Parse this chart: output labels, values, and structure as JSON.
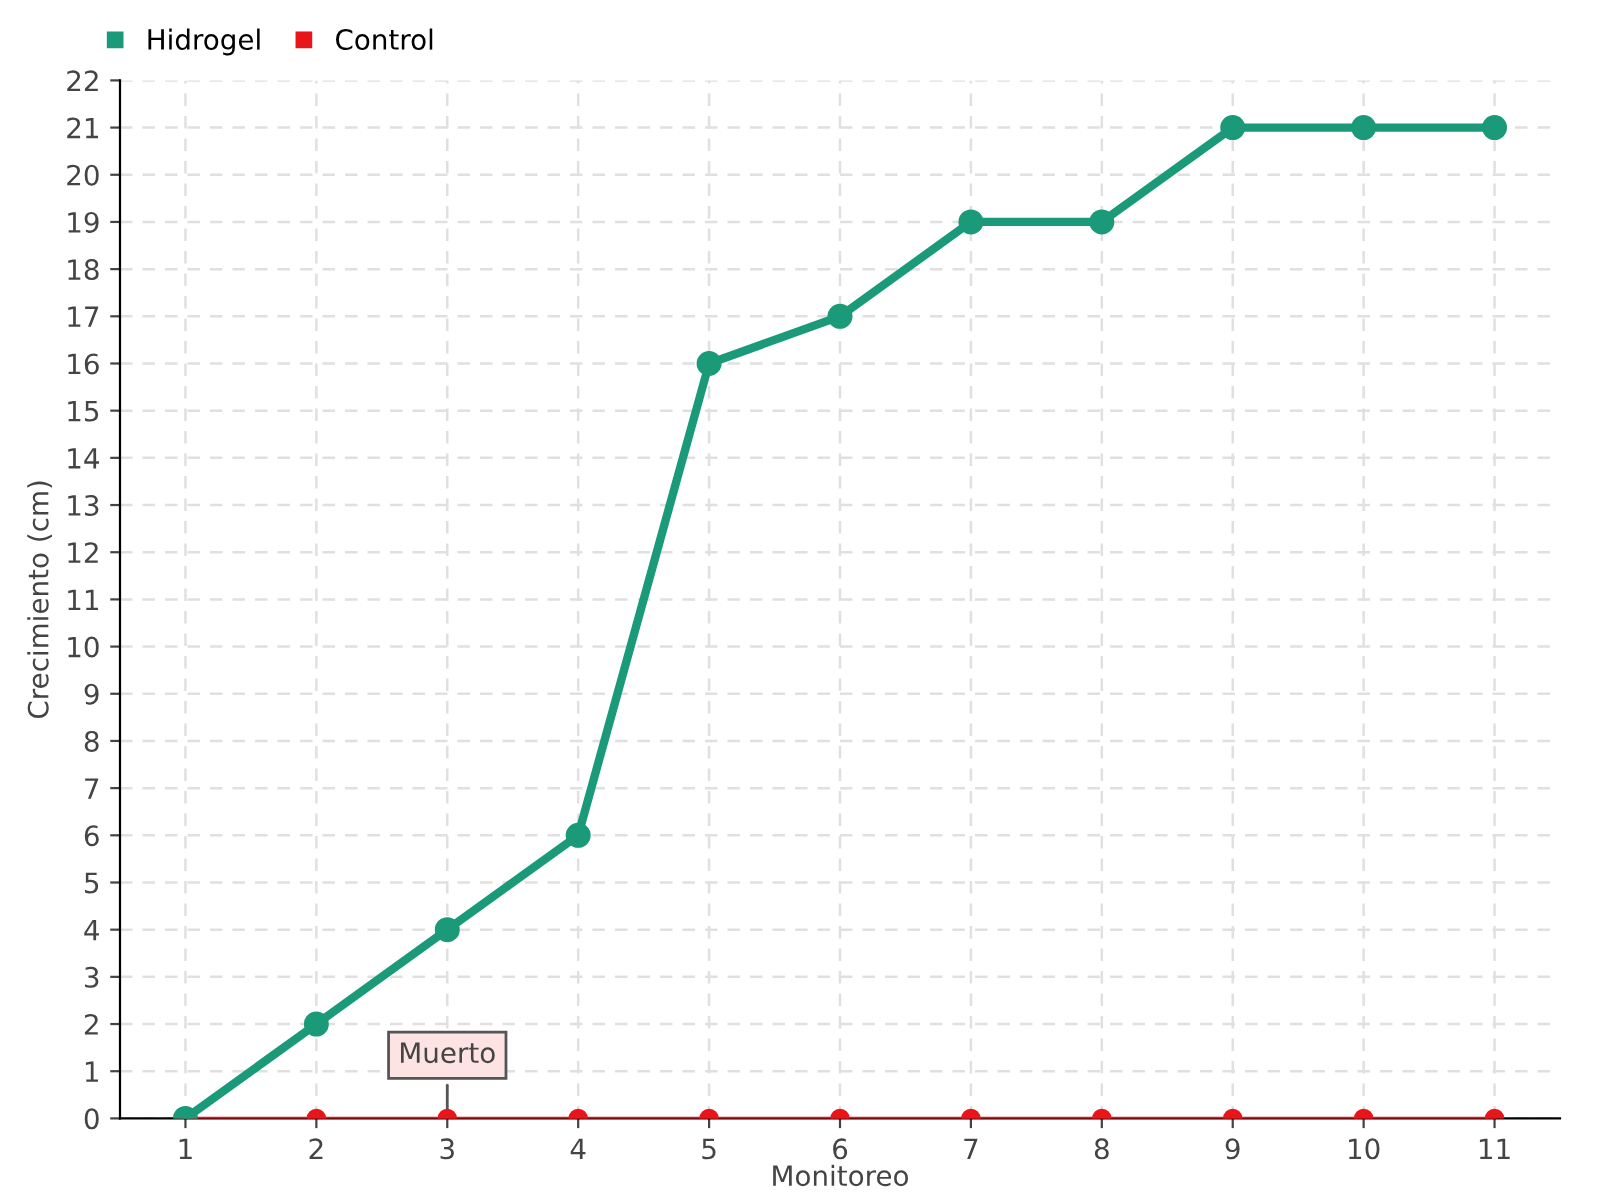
{
  "chart_data": {
    "type": "line",
    "xlabel": "Monitoreo",
    "ylabel": "Crecimiento (cm)",
    "categories": [
      "1",
      "2",
      "3",
      "4",
      "5",
      "6",
      "7",
      "8",
      "9",
      "10",
      "11"
    ],
    "series": [
      {
        "name": "Hidrogel",
        "color": "#1a9a78",
        "values": [
          0,
          2,
          4,
          6,
          16,
          17,
          19,
          19,
          21,
          21,
          21
        ]
      },
      {
        "name": "Control",
        "color": "#e8151b",
        "values": [
          0,
          0,
          0,
          0,
          0,
          0,
          0,
          0,
          0,
          0,
          0
        ]
      }
    ],
    "ylim": [
      0,
      22
    ],
    "yticks": [
      0,
      1,
      2,
      3,
      4,
      5,
      6,
      7,
      8,
      9,
      10,
      11,
      12,
      13,
      14,
      15,
      16,
      17,
      18,
      19,
      20,
      21,
      22
    ],
    "grid": true,
    "legend": "top left",
    "marker": "circle",
    "line_style": "solid",
    "annotations": [
      {
        "text": "Muerto",
        "x": "3",
        "y": 0
      }
    ]
  }
}
